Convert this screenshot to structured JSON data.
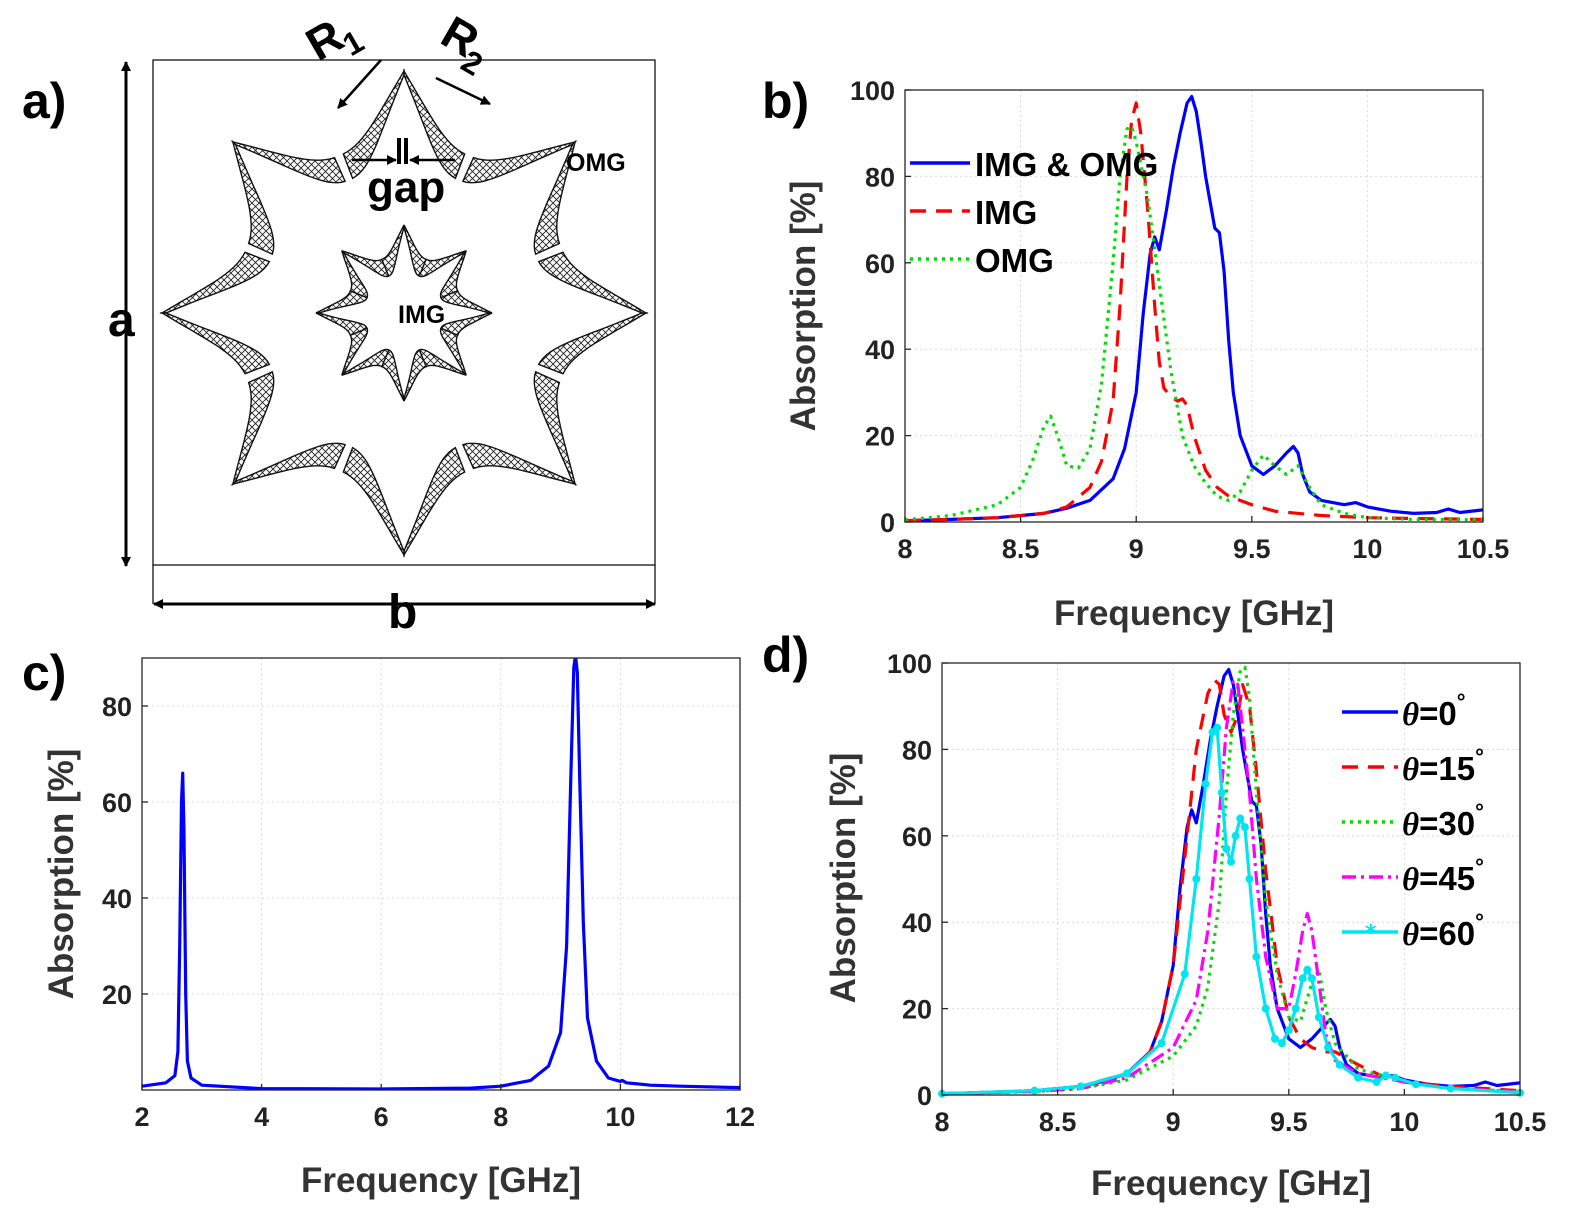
{
  "panel_labels": {
    "a": "a)",
    "b": "b)",
    "c": "c)",
    "d": "d)"
  },
  "schematic": {
    "r1_base": "R",
    "r1_sub": "1",
    "r2_base": "R",
    "r2_sub": "2",
    "gap_label": "gap",
    "omg_label": "OMG",
    "img_label": "IMG",
    "dim_a": "a",
    "dim_b": "b"
  },
  "colors": {
    "blue": "#0000ff",
    "red": "#ff0000",
    "green": "#00dd00",
    "magenta": "#ff00ff",
    "cyan": "#00e5ee"
  },
  "chart_data": [
    {
      "id": "b",
      "type": "line",
      "xlabel": "Frequency [GHz]",
      "ylabel": "Absorption [%]",
      "xlim": [
        8,
        10.5
      ],
      "ylim": [
        0,
        100
      ],
      "xticks": [
        8,
        8.5,
        9,
        9.5,
        10,
        10.5
      ],
      "yticks": [
        0,
        20,
        40,
        60,
        80,
        100
      ],
      "grid": true,
      "legend_position": "top-left",
      "series": [
        {
          "name": "IMG & OMG",
          "style": "solid",
          "color": "#0000ff",
          "x": [
            8.0,
            8.2,
            8.4,
            8.6,
            8.7,
            8.8,
            8.9,
            8.95,
            9.0,
            9.03,
            9.06,
            9.08,
            9.1,
            9.13,
            9.16,
            9.19,
            9.22,
            9.24,
            9.26,
            9.28,
            9.3,
            9.32,
            9.34,
            9.36,
            9.38,
            9.4,
            9.42,
            9.45,
            9.5,
            9.55,
            9.6,
            9.65,
            9.68,
            9.7,
            9.72,
            9.75,
            9.8,
            9.9,
            9.95,
            10.0,
            10.1,
            10.2,
            10.3,
            10.35,
            10.4,
            10.5
          ],
          "y": [
            0.3,
            0.6,
            1.0,
            2.0,
            3.2,
            5.0,
            10.0,
            17.0,
            30.0,
            48.0,
            62.0,
            66.0,
            63.0,
            72.0,
            82.0,
            90.0,
            97.0,
            98.5,
            95.0,
            88.0,
            80.0,
            74.0,
            68.0,
            67.0,
            58.0,
            42.0,
            30.0,
            20.0,
            13.0,
            11.0,
            13.0,
            16.0,
            17.5,
            16.0,
            11.0,
            7.0,
            5.0,
            4.0,
            4.5,
            3.5,
            2.5,
            2.0,
            2.2,
            3.0,
            2.2,
            2.8
          ]
        },
        {
          "name": "IMG",
          "style": "dashed",
          "color": "#ff0000",
          "x": [
            8.0,
            8.2,
            8.4,
            8.6,
            8.7,
            8.8,
            8.85,
            8.9,
            8.93,
            8.96,
            8.98,
            9.0,
            9.02,
            9.05,
            9.08,
            9.1,
            9.12,
            9.15,
            9.18,
            9.2,
            9.22,
            9.25,
            9.3,
            9.35,
            9.4,
            9.5,
            9.6,
            9.8,
            10.0,
            10.2,
            10.5
          ],
          "y": [
            0.3,
            0.6,
            1.0,
            2.0,
            3.5,
            8.0,
            14.0,
            28.0,
            50.0,
            80.0,
            93.0,
            97.0,
            90.0,
            72.0,
            50.0,
            37.0,
            31.0,
            29.0,
            28.0,
            28.5,
            27.0,
            20.0,
            12.0,
            8.0,
            6.0,
            4.0,
            2.5,
            1.5,
            1.0,
            0.8,
            0.6
          ]
        },
        {
          "name": "OMG",
          "style": "dotted",
          "color": "#00dd00",
          "x": [
            8.0,
            8.2,
            8.4,
            8.5,
            8.55,
            8.6,
            8.63,
            8.66,
            8.7,
            8.75,
            8.8,
            8.85,
            8.9,
            8.93,
            8.96,
            8.98,
            9.0,
            9.05,
            9.1,
            9.15,
            9.2,
            9.25,
            9.3,
            9.35,
            9.4,
            9.45,
            9.5,
            9.55,
            9.6,
            9.65,
            9.7,
            9.75,
            9.8,
            9.9,
            10.0,
            10.2,
            10.5
          ],
          "y": [
            0.5,
            1.5,
            4.0,
            8.0,
            14.0,
            22.0,
            24.5,
            20.0,
            13.0,
            12.5,
            17.0,
            32.0,
            60.0,
            80.0,
            91.0,
            91.5,
            88.0,
            75.0,
            55.0,
            35.0,
            20.0,
            13.0,
            9.0,
            6.0,
            5.0,
            7.0,
            12.0,
            15.5,
            13.0,
            11.0,
            13.0,
            8.0,
            4.0,
            2.0,
            1.0,
            0.6,
            0.5
          ]
        }
      ]
    },
    {
      "id": "c",
      "type": "line",
      "xlabel": "Frequency [GHz]",
      "ylabel": "Absorption [%]",
      "xlim": [
        2,
        12
      ],
      "ylim": [
        0,
        90
      ],
      "xticks": [
        2,
        4,
        6,
        8,
        10,
        12
      ],
      "yticks": [
        20,
        40,
        60,
        80
      ],
      "grid": true,
      "series": [
        {
          "name": "Absorption",
          "style": "solid",
          "color": "#0000ff",
          "x": [
            2.0,
            2.4,
            2.55,
            2.6,
            2.63,
            2.66,
            2.68,
            2.7,
            2.73,
            2.76,
            2.82,
            3.0,
            4.0,
            6.0,
            7.5,
            8.0,
            8.5,
            8.8,
            9.0,
            9.1,
            9.17,
            9.22,
            9.25,
            9.28,
            9.32,
            9.38,
            9.45,
            9.6,
            9.8,
            10.0,
            10.03,
            10.1,
            10.5,
            11.0,
            12.0
          ],
          "y": [
            0.8,
            1.5,
            3.0,
            8.0,
            30.0,
            60.0,
            66.0,
            55.0,
            20.0,
            6.0,
            2.5,
            1.0,
            0.3,
            0.2,
            0.4,
            0.8,
            2.0,
            5.0,
            12.0,
            30.0,
            65.0,
            88.0,
            90.5,
            87.0,
            65.0,
            35.0,
            15.0,
            6.0,
            2.5,
            1.8,
            2.0,
            1.5,
            1.0,
            0.8,
            0.5
          ]
        }
      ]
    },
    {
      "id": "d",
      "type": "line",
      "xlabel": "Frequency [GHz]",
      "ylabel": "Absorption [%]",
      "xlim": [
        8,
        10.5
      ],
      "ylim": [
        0,
        100
      ],
      "xticks": [
        8,
        8.5,
        9,
        9.5,
        10,
        10.5
      ],
      "yticks": [
        0,
        20,
        40,
        60,
        80,
        100
      ],
      "grid": true,
      "legend_position": "top-right",
      "series": [
        {
          "name": "=0",
          "theta": "θ",
          "deg": "°",
          "style": "solid",
          "color": "#0000ff",
          "x": [
            8.0,
            8.2,
            8.4,
            8.6,
            8.7,
            8.8,
            8.9,
            8.95,
            9.0,
            9.03,
            9.06,
            9.08,
            9.1,
            9.13,
            9.16,
            9.19,
            9.22,
            9.24,
            9.26,
            9.28,
            9.3,
            9.32,
            9.34,
            9.36,
            9.38,
            9.4,
            9.42,
            9.45,
            9.5,
            9.55,
            9.6,
            9.65,
            9.68,
            9.7,
            9.72,
            9.75,
            9.8,
            9.9,
            9.95,
            10.0,
            10.1,
            10.2,
            10.3,
            10.35,
            10.4,
            10.5
          ],
          "y": [
            0.3,
            0.6,
            1.0,
            2.0,
            3.2,
            5.0,
            10.0,
            17.0,
            30.0,
            48.0,
            62.0,
            66.0,
            63.0,
            72.0,
            82.0,
            90.0,
            97.0,
            98.5,
            95.0,
            88.0,
            80.0,
            74.0,
            68.0,
            67.0,
            58.0,
            42.0,
            30.0,
            20.0,
            13.0,
            11.0,
            13.0,
            16.0,
            17.5,
            16.0,
            11.0,
            7.0,
            5.0,
            4.0,
            4.5,
            3.5,
            2.5,
            2.0,
            2.2,
            3.0,
            2.2,
            2.8
          ]
        },
        {
          "name": "=15",
          "theta": "θ",
          "deg": "°",
          "style": "dashed",
          "color": "#ff0000",
          "x": [
            8.0,
            8.4,
            8.6,
            8.8,
            8.9,
            8.95,
            9.0,
            9.05,
            9.1,
            9.15,
            9.18,
            9.2,
            9.22,
            9.25,
            9.28,
            9.3,
            9.33,
            9.36,
            9.4,
            9.45,
            9.5,
            9.55,
            9.6,
            9.65,
            9.7,
            9.8,
            9.9,
            9.95,
            10.0,
            10.2,
            10.5
          ],
          "y": [
            0.3,
            1.0,
            2.0,
            5.0,
            10.0,
            17.0,
            30.0,
            55.0,
            80.0,
            93.0,
            96.0,
            95.0,
            88.0,
            84.0,
            88.0,
            95.0,
            90.0,
            75.0,
            52.0,
            30.0,
            18.0,
            13.0,
            11.0,
            10.0,
            10.0,
            7.0,
            4.5,
            4.0,
            3.0,
            2.0,
            1.0
          ]
        },
        {
          "name": "=30",
          "theta": "θ",
          "deg": "°",
          "style": "dotted",
          "color": "#00dd00",
          "x": [
            8.0,
            8.4,
            8.6,
            8.8,
            9.0,
            9.1,
            9.15,
            9.2,
            9.23,
            9.26,
            9.29,
            9.31,
            9.33,
            9.36,
            9.4,
            9.45,
            9.5,
            9.55,
            9.6,
            9.63,
            9.66,
            9.7,
            9.8,
            9.9,
            10.0,
            10.2,
            10.5
          ],
          "y": [
            0.3,
            0.8,
            1.5,
            3.5,
            9.0,
            16.0,
            25.0,
            45.0,
            70.0,
            88.0,
            98.0,
            99.0,
            92.0,
            70.0,
            45.0,
            28.0,
            18.0,
            17.0,
            26.0,
            29.0,
            20.0,
            12.0,
            6.0,
            4.5,
            3.0,
            1.5,
            0.8
          ]
        },
        {
          "name": "=45",
          "theta": "θ",
          "deg": "°",
          "style": "dashdot",
          "color": "#ff00ff",
          "x": [
            8.0,
            8.4,
            8.6,
            8.8,
            9.0,
            9.1,
            9.15,
            9.2,
            9.23,
            9.26,
            9.28,
            9.3,
            9.33,
            9.36,
            9.4,
            9.45,
            9.5,
            9.53,
            9.56,
            9.58,
            9.6,
            9.63,
            9.66,
            9.7,
            9.8,
            9.9,
            10.0,
            10.2,
            10.5
          ],
          "y": [
            0.3,
            0.8,
            1.5,
            4.0,
            11.0,
            22.0,
            38.0,
            65.0,
            85.0,
            96.0,
            95.0,
            85.0,
            70.0,
            50.0,
            32.0,
            20.0,
            20.0,
            28.0,
            38.0,
            42.0,
            38.0,
            26.0,
            14.0,
            8.0,
            5.0,
            4.0,
            3.0,
            1.5,
            0.8
          ]
        },
        {
          "name": "=60",
          "theta": "θ",
          "deg": "°",
          "style": "marker",
          "color": "#00e5ee",
          "x": [
            8.0,
            8.4,
            8.6,
            8.8,
            8.95,
            9.05,
            9.1,
            9.14,
            9.17,
            9.19,
            9.21,
            9.23,
            9.25,
            9.27,
            9.29,
            9.31,
            9.33,
            9.36,
            9.4,
            9.44,
            9.47,
            9.5,
            9.53,
            9.56,
            9.58,
            9.6,
            9.63,
            9.67,
            9.72,
            9.8,
            9.88,
            9.92,
            9.96,
            10.05,
            10.2,
            10.5
          ],
          "y": [
            0.3,
            1.0,
            2.0,
            5.0,
            12.0,
            28.0,
            50.0,
            72.0,
            84.0,
            85.0,
            70.0,
            57.0,
            54.0,
            60.0,
            64.0,
            62.0,
            50.0,
            32.0,
            20.0,
            13.0,
            12.0,
            15.0,
            20.0,
            27.0,
            29.0,
            27.0,
            18.0,
            11.0,
            7.0,
            4.0,
            3.0,
            4.5,
            4.0,
            2.5,
            1.5,
            0.5
          ]
        }
      ]
    }
  ]
}
